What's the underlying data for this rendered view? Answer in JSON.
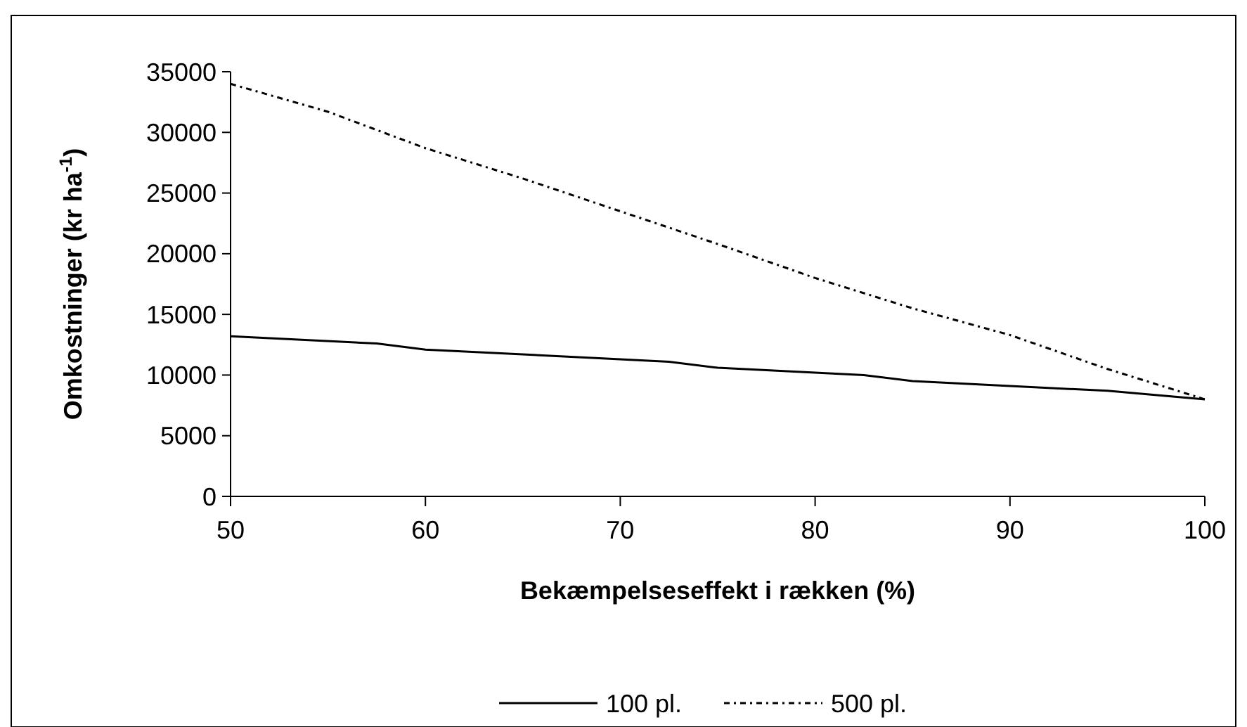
{
  "chart_data": {
    "type": "line",
    "xlabel": "Bekæmpelseseffekt i rækken (%)",
    "ylabel": "Omkostninger (kr ha$^{-1}$)",
    "xlim": [
      50,
      100
    ],
    "xticks": [
      50,
      60,
      70,
      80,
      90,
      100
    ],
    "ylim": [
      0,
      35000
    ],
    "yticks": [
      0,
      5000,
      10000,
      15000,
      20000,
      25000,
      30000,
      35000
    ],
    "legend": "bottom",
    "series": [
      {
        "name": "100 pl.",
        "color": "#000000",
        "line_style": "solid",
        "x": [
          50,
          57.5,
          60,
          72.5,
          75,
          82.5,
          85,
          95,
          100
        ],
        "values": [
          13200,
          12600,
          12100,
          11100,
          10600,
          10000,
          9500,
          8700,
          8000
        ]
      },
      {
        "name": "500 pl.",
        "color": "#000000",
        "line_style": "dotted",
        "x": [
          50,
          55,
          60,
          65,
          70,
          75,
          80,
          85,
          90,
          95,
          100
        ],
        "values": [
          34000,
          31700,
          28700,
          26200,
          23500,
          20800,
          18000,
          15500,
          13300,
          10500,
          8000
        ]
      }
    ]
  }
}
